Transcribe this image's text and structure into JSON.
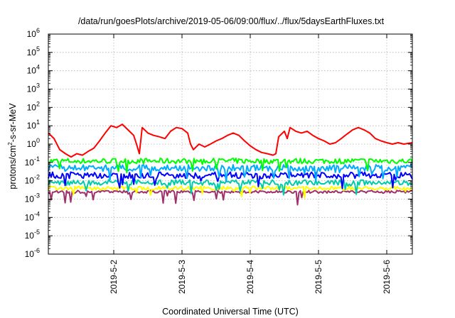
{
  "chart_data": {
    "type": "line",
    "title": "/data/run/goesPlots/archive/2019-05-06/09:00/flux/../flux/5daysEarthFluxes.txt",
    "xlabel": "Coordinated Universal Time (UTC)",
    "ylabel": {
      "base": "protons/cm",
      "sup": "2",
      "rest": "-s-sr-MeV"
    },
    "yscale": "log",
    "ylim": [
      1e-06,
      1000000.0
    ],
    "xlim": [
      "2019-05-01 01:00",
      "2019-05-06 09:00"
    ],
    "grid": true,
    "x_ticks": [
      "2019-5-2",
      "2019-5-3",
      "2019-5-4",
      "2019-5-5",
      "2019-5-6"
    ],
    "y_ticks": [
      {
        "base": "10",
        "exp": "-6",
        "value": 1e-06
      },
      {
        "base": "10",
        "exp": "-5",
        "value": 1e-05
      },
      {
        "base": "10",
        "exp": "-4",
        "value": 0.0001
      },
      {
        "base": "10",
        "exp": "-3",
        "value": 0.001
      },
      {
        "base": "10",
        "exp": "-2",
        "value": 0.01
      },
      {
        "base": "10",
        "exp": "-1",
        "value": 0.1
      },
      {
        "base": "10",
        "exp": "0",
        "value": 1
      },
      {
        "base": "10",
        "exp": "1",
        "value": 10
      },
      {
        "base": "10",
        "exp": "2",
        "value": 100
      },
      {
        "base": "10",
        "exp": "3",
        "value": 1000
      },
      {
        "base": "10",
        "exp": "4",
        "value": 10000
      },
      {
        "base": "10",
        "exp": "5",
        "value": 100000
      },
      {
        "base": "10",
        "exp": "6",
        "value": 1000000
      }
    ],
    "series": [
      {
        "color": "#ff0000",
        "points": [
          [
            "2019-05-01 01:00",
            4.0
          ],
          [
            "2019-05-01 03:00",
            2.0
          ],
          [
            "2019-05-01 05:00",
            0.5
          ],
          [
            "2019-05-01 07:00",
            0.3
          ],
          [
            "2019-05-01 09:00",
            0.2
          ],
          [
            "2019-05-01 11:00",
            0.3
          ],
          [
            "2019-05-01 13:00",
            0.25
          ],
          [
            "2019-05-01 15:00",
            0.4
          ],
          [
            "2019-05-01 17:00",
            0.6
          ],
          [
            "2019-05-01 19:00",
            1.5
          ],
          [
            "2019-05-01 21:00",
            4.0
          ],
          [
            "2019-05-01 23:00",
            10.0
          ],
          [
            "2019-05-02 01:00",
            8.0
          ],
          [
            "2019-05-02 03:00",
            12.0
          ],
          [
            "2019-05-02 05:00",
            6.0
          ],
          [
            "2019-05-02 07:00",
            3.0
          ],
          [
            "2019-05-02 08:00",
            1.0
          ],
          [
            "2019-05-02 09:00",
            0.3
          ],
          [
            "2019-05-02 10:00",
            8.0
          ],
          [
            "2019-05-02 12:00",
            4.0
          ],
          [
            "2019-05-02 14:00",
            3.0
          ],
          [
            "2019-05-02 16:00",
            2.5
          ],
          [
            "2019-05-02 18:00",
            2.0
          ],
          [
            "2019-05-02 20:00",
            5.0
          ],
          [
            "2019-05-02 22:00",
            8.0
          ],
          [
            "2019-05-03 00:00",
            7.0
          ],
          [
            "2019-05-03 02:00",
            4.0
          ],
          [
            "2019-05-03 03:00",
            1.0
          ],
          [
            "2019-05-03 04:00",
            0.5
          ],
          [
            "2019-05-03 06:00",
            1.0
          ],
          [
            "2019-05-03 08:00",
            0.7
          ],
          [
            "2019-05-03 10:00",
            1.0
          ],
          [
            "2019-05-03 12:00",
            1.5
          ],
          [
            "2019-05-03 14:00",
            2.0
          ],
          [
            "2019-05-03 16:00",
            3.0
          ],
          [
            "2019-05-03 18:00",
            4.0
          ],
          [
            "2019-05-03 20:00",
            3.0
          ],
          [
            "2019-05-03 22:00",
            1.5
          ],
          [
            "2019-05-04 00:00",
            0.8
          ],
          [
            "2019-05-04 02:00",
            0.5
          ],
          [
            "2019-05-04 04:00",
            0.35
          ],
          [
            "2019-05-04 06:00",
            0.3
          ],
          [
            "2019-05-04 08:00",
            0.25
          ],
          [
            "2019-05-04 09:00",
            0.3
          ],
          [
            "2019-05-04 10:00",
            2.5
          ],
          [
            "2019-05-04 12:00",
            5.0
          ],
          [
            "2019-05-04 13:00",
            2.0
          ],
          [
            "2019-05-04 14:00",
            8.0
          ],
          [
            "2019-05-04 16:00",
            5.0
          ],
          [
            "2019-05-04 18:00",
            4.0
          ],
          [
            "2019-05-04 20:00",
            5.0
          ],
          [
            "2019-05-04 22:00",
            3.0
          ],
          [
            "2019-05-05 00:00",
            2.0
          ],
          [
            "2019-05-05 02:00",
            1.5
          ],
          [
            "2019-05-05 04:00",
            1.0
          ],
          [
            "2019-05-05 06:00",
            1.2
          ],
          [
            "2019-05-05 08:00",
            2.0
          ],
          [
            "2019-05-05 10:00",
            3.5
          ],
          [
            "2019-05-05 12:00",
            6.0
          ],
          [
            "2019-05-05 14:00",
            8.0
          ],
          [
            "2019-05-05 16:00",
            6.0
          ],
          [
            "2019-05-05 18:00",
            4.0
          ],
          [
            "2019-05-05 20:00",
            2.0
          ],
          [
            "2019-05-05 22:00",
            1.5
          ],
          [
            "2019-05-06 00:00",
            1.2
          ],
          [
            "2019-05-06 02:00",
            1.0
          ],
          [
            "2019-05-06 04:00",
            1.2
          ],
          [
            "2019-05-06 06:00",
            1.0
          ],
          [
            "2019-05-06 09:00",
            1.2
          ]
        ]
      },
      {
        "color": "#00ff00",
        "base": 0.12,
        "noise": 0.3,
        "seed": 7
      },
      {
        "color": "#00aaff",
        "base": 0.05,
        "noise": 0.35,
        "seed": 13
      },
      {
        "color": "#0000ff",
        "base": 0.02,
        "noise": 0.35,
        "seed": 21
      },
      {
        "color": "#00ccaa",
        "base": 0.008,
        "noise": 0.3,
        "seed": 33
      },
      {
        "color": "#ffff00",
        "base": 0.004,
        "noise": 0.2,
        "seed": 41
      },
      {
        "color": "#a0306a",
        "base": 0.0025,
        "noise": 0.15,
        "seed": 55
      }
    ]
  }
}
